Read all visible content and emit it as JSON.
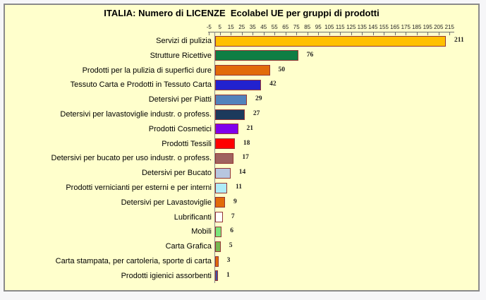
{
  "window": {
    "background_color": "#ffffcc",
    "border_color": "#8a8a8a",
    "outer_background": "#f6f6f8"
  },
  "chart_data": {
    "type": "bar",
    "orientation": "horizontal",
    "title": "ITALIA: Numero di LICENZE  Ecolabel UE per gruppi di prodotti",
    "categories": [
      "Servizi di pulizia",
      "Strutture Ricettive",
      "Prodotti per la pulizia di superfici dure",
      "Tessuto Carta e Prodotti in Tessuto Carta",
      "Detersivi per Piatti",
      "Detersivi per lavastoviglie industr. o profess.",
      "Prodotti Cosmetici",
      "Prodotti Tessili",
      "Detersivi per bucato per uso industr. o profess.",
      "Detersivi per Bucato",
      "Prodotti vernicianti per esterni e per interni",
      "Detersivi per Lavastoviglie",
      "Lubrificanti",
      "Mobili",
      "Carta Grafica",
      "Carta stampata, per cartoleria, sporte di carta",
      "Prodotti igienici assorbenti"
    ],
    "values": [
      211,
      76,
      50,
      42,
      29,
      27,
      21,
      18,
      17,
      14,
      11,
      9,
      7,
      6,
      5,
      3,
      1
    ],
    "bar_colors": [
      "#ffc000",
      "#0e7e44",
      "#e26b0a",
      "#2222cf",
      "#5283bc",
      "#1c3a5c",
      "#7f00ec",
      "#fe0000",
      "#a0625f",
      "#b7c6df",
      "#aeecf8",
      "#e26b0a",
      "#ffffff",
      "#7be57b",
      "#76b851",
      "#e26b0a",
      "#4053a8"
    ],
    "bar_border_color": "#943634",
    "value_label_color": "#1f1f1f",
    "axis": {
      "position": "top",
      "min": -5,
      "max": 215,
      "step": 10,
      "ticks": [
        -5,
        5,
        15,
        25,
        35,
        45,
        55,
        65,
        75,
        85,
        95,
        105,
        115,
        125,
        135,
        145,
        155,
        165,
        175,
        185,
        195,
        205,
        215
      ]
    },
    "grid": false,
    "legend": false,
    "plot_background": "#ffffcc"
  }
}
